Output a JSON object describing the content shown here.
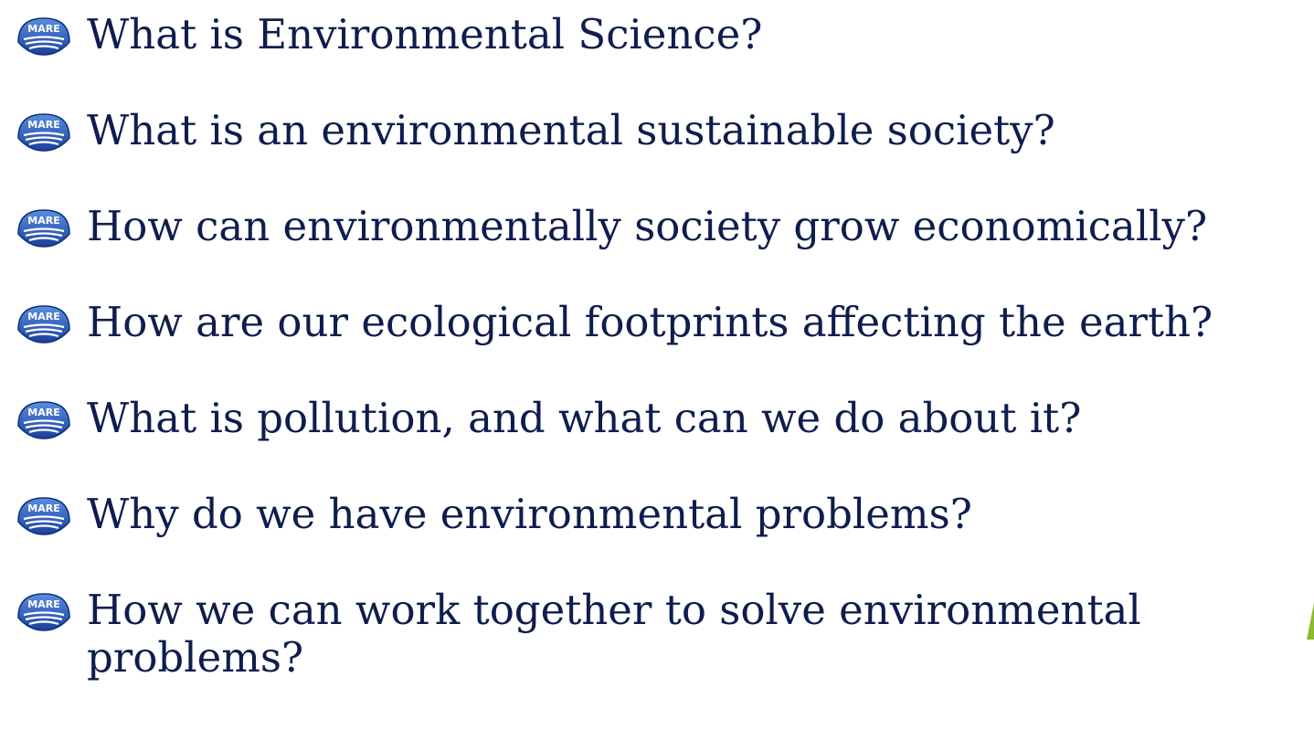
{
  "bullet_icon_text": "MARE",
  "items": [
    "What is Environmental Science?",
    "What is an environmental sustainable society?",
    "How can environmentally society grow economically?",
    "How are our ecological footprints affecting the earth?",
    "What is pollution, and what can we do about it?",
    "Why do we have environmental problems?",
    "How we can work together to solve environmental problems?"
  ]
}
